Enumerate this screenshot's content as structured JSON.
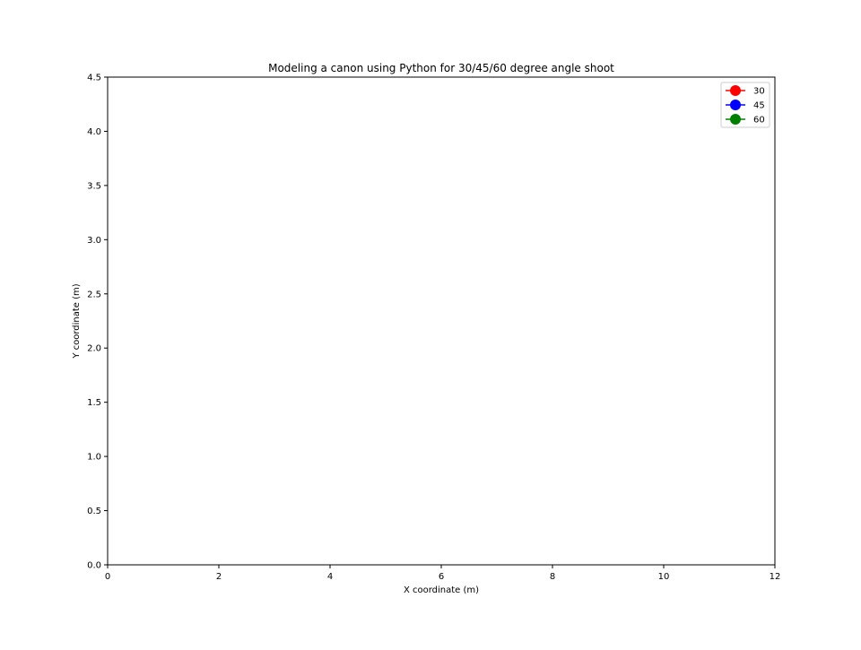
{
  "chart_data": {
    "type": "line",
    "title": "Modeling a canon using Python for 30/45/60 degree angle shoot",
    "xlabel": "X coordinate (m)",
    "ylabel": "Y coordinate (m)",
    "xlim": [
      0,
      12
    ],
    "ylim": [
      0,
      4.5
    ],
    "xticks": [
      0,
      2,
      4,
      6,
      8,
      10,
      12
    ],
    "xtick_labels": [
      "0",
      "2",
      "4",
      "6",
      "8",
      "10",
      "12"
    ],
    "yticks": [
      0,
      0.5,
      1,
      1.5,
      2,
      2.5,
      3,
      3.5,
      4,
      4.5
    ],
    "ytick_labels": [
      "0.0",
      "0.5",
      "1.0",
      "1.5",
      "2.0",
      "2.5",
      "3.0",
      "3.5",
      "4.0",
      "4.5"
    ],
    "grid": false,
    "legend_position": "top-right",
    "marker": "circle",
    "series": [
      {
        "name": "30",
        "color": "#ff0000",
        "x": [],
        "y": []
      },
      {
        "name": "45",
        "color": "#0000ff",
        "x": [],
        "y": []
      },
      {
        "name": "60",
        "color": "#008000",
        "x": [],
        "y": []
      }
    ]
  }
}
